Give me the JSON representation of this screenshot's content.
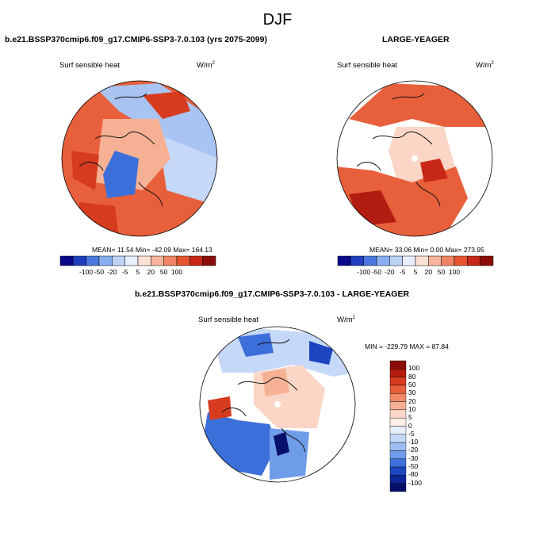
{
  "figure": {
    "title": "DJF",
    "panel1": {
      "case_title": "b.e21.BSSP370cmip6.f09_g17.CMIP6-SSP3-7.0.103 (yrs 2075-2099)",
      "variable": "Surf sensible heat",
      "units_base": "W/m",
      "units_exp": "2",
      "stats": "MEAN=  11.54  Min= -42.09  Max= 164.13"
    },
    "panel2": {
      "case_title": "LARGE-YEAGER",
      "variable": "Surf sensible heat",
      "units_base": "W/m",
      "units_exp": "2",
      "stats": "MEAN=  33.06  Min=   0.00  Max= 273.95"
    },
    "panel3": {
      "case_title": "b.e21.BSSP370cmip6.f09_g17.CMIP6-SSP3-7.0.103 - LARGE-YEAGER",
      "variable": "Surf sensible heat",
      "units_base": "W/m",
      "units_exp": "2",
      "stats": "MIN = -229.79 MAX =  87.84"
    },
    "colorbar_levels": [
      "-100",
      "-50",
      "-20",
      "-5",
      "5",
      "20",
      "50",
      "100"
    ],
    "colorbar_colors": [
      "#08088a",
      "#1f3fbf",
      "#4a78e0",
      "#86aef0",
      "#bcd2f7",
      "#e8eefc",
      "#fbe0d4",
      "#f6b59b",
      "#f08565",
      "#e6552f",
      "#c82818",
      "#8b0c08"
    ],
    "diff_levels": [
      "100",
      "80",
      "50",
      "30",
      "20",
      "10",
      "5",
      "0",
      "-5",
      "-10",
      "-20",
      "-30",
      "-50",
      "-80",
      "-100"
    ],
    "diff_colors": [
      "#8b0c08",
      "#b31c10",
      "#d63a1f",
      "#e8603b",
      "#f08a65",
      "#f6b195",
      "#fbd6c6",
      "#fdeee6",
      "#e6eefc",
      "#c6d8f8",
      "#9dbdf2",
      "#6f9ce8",
      "#3c6fda",
      "#1d45bf",
      "#0c2596",
      "#06106a"
    ]
  }
}
